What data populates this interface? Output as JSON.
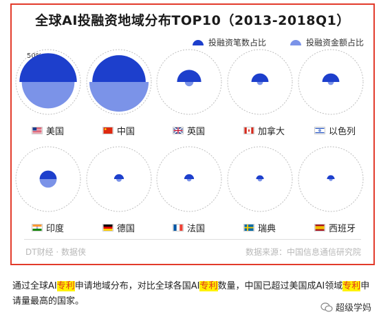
{
  "chart_data": {
    "type": "semicircle-comparison",
    "title": "全球AI投融资地域分布TOP10（2013-2018Q1）",
    "series": [
      {
        "name": "投融资笔数占比",
        "color": "#1d3fcc"
      },
      {
        "name": "投融资金额占比",
        "color": "#7b93e8"
      }
    ],
    "scale_label": "50%",
    "countries": [
      {
        "name": "美国",
        "flag": "us-flag",
        "count_share": 0.45,
        "amount_share": 0.38
      },
      {
        "name": "中国",
        "flag": "cn-flag",
        "count_share": 0.39,
        "amount_share": 0.48
      },
      {
        "name": "英国",
        "flag": "uk-flag",
        "count_share": 0.08,
        "amount_share": 0.01
      },
      {
        "name": "加拿大",
        "flag": "ca-flag",
        "count_share": 0.04,
        "amount_share": 0.005
      },
      {
        "name": "以色列",
        "flag": "il-flag",
        "count_share": 0.04,
        "amount_share": 0.005
      },
      {
        "name": "印度",
        "flag": "in-flag",
        "count_share": 0.04,
        "amount_share": 0.04
      },
      {
        "name": "德国",
        "flag": "de-flag",
        "count_share": 0.013,
        "amount_share": 0.004
      },
      {
        "name": "法国",
        "flag": "fr-flag",
        "count_share": 0.013,
        "amount_share": 0.003
      },
      {
        "name": "瑞典",
        "flag": "se-flag",
        "count_share": 0.008,
        "amount_share": 0.003
      },
      {
        "name": "西班牙",
        "flag": "es-flag",
        "count_share": 0.008,
        "amount_share": 0.002
      }
    ]
  },
  "footer": {
    "left": "DT财经 · 数据侠",
    "right": "数据来源：中国信息通信研究院"
  },
  "caption": {
    "parts": [
      "通过全球AI",
      "专利",
      "申请地域分布，对比全球各国AI",
      "专利",
      "数量，中国已超过美国成AI领域",
      "专利",
      "申请量最高的国家。"
    ]
  },
  "brand": {
    "name": "超级学妈"
  }
}
